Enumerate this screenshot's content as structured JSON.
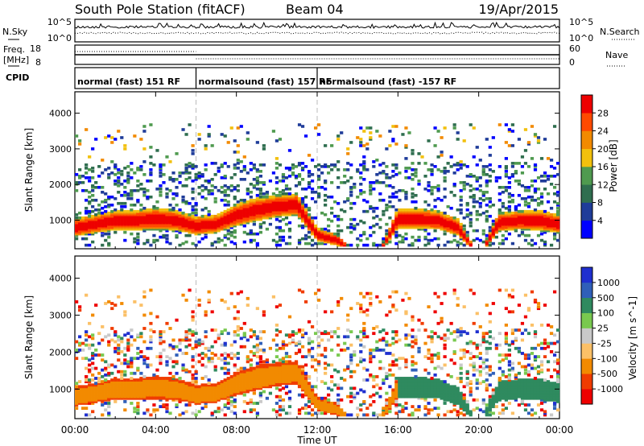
{
  "header": {
    "station": "South Pole Station (fitACF)",
    "beam": "Beam 04",
    "date": "19/Apr/2015"
  },
  "summary_panels": {
    "nsky": {
      "label": "N.Sky",
      "ticks_left": [
        "10^5",
        "10^0"
      ]
    },
    "nsearch": {
      "label": "N.Search",
      "ticks_right": [
        "10^5",
        "10^0"
      ]
    },
    "freq": {
      "label_line1": "Freq.",
      "label_line2": "[MHz]",
      "ticks": [
        "18",
        "8"
      ]
    },
    "nave": {
      "label": "Nave",
      "ticks": [
        "60",
        "0"
      ]
    },
    "cpid": {
      "label": "CPID",
      "segments": [
        {
          "label": "normal (fast) 151 RF",
          "start_h": 0,
          "end_h": 6
        },
        {
          "label": "normalsound (fast) 157 RF",
          "start_h": 6,
          "end_h": 12
        },
        {
          "label": "normalsound (fast) -157 RF",
          "start_h": 12,
          "end_h": 24
        }
      ]
    }
  },
  "colors": {
    "power": [
      "#0000ff",
      "#1f3c99",
      "#2f6e4f",
      "#4f9a4f",
      "#f2c00d",
      "#f28a00",
      "#ff4a00",
      "#ee0000"
    ],
    "velocity": [
      "#ee0000",
      "#f03c00",
      "#f28a00",
      "#fbc067",
      "#c9c9c9",
      "#79c94f",
      "#2f8a5f",
      "#2f5fb9",
      "#1f2fcf"
    ]
  },
  "chart_data": [
    {
      "type": "heatmap",
      "name": "power",
      "ylabel": "Slant Range [km]",
      "ylim": [
        200,
        4600
      ],
      "yticks": [
        "1000",
        "2000",
        "3000",
        "4000"
      ],
      "xlim": [
        0,
        24
      ],
      "colorbar": {
        "label": "Power [dB]",
        "ticks": [
          "4",
          "8",
          "12",
          "16",
          "20",
          "24",
          "28"
        ],
        "range": [
          0,
          32
        ]
      },
      "band_profile": {
        "hours": [
          0,
          1,
          2,
          3,
          4,
          5,
          6,
          7,
          8,
          9,
          10,
          11,
          12,
          13,
          14,
          15,
          16,
          17,
          18,
          19,
          20,
          21,
          22,
          23,
          24
        ],
        "center_km": [
          800,
          900,
          1000,
          1000,
          1050,
          1000,
          850,
          900,
          1150,
          1300,
          1400,
          1450,
          600,
          450,
          0,
          0,
          1050,
          1050,
          1000,
          800,
          0,
          950,
          1000,
          1000,
          900
        ],
        "width_km": [
          500,
          500,
          550,
          550,
          600,
          550,
          500,
          500,
          600,
          650,
          600,
          600,
          350,
          300,
          0,
          0,
          550,
          550,
          500,
          450,
          0,
          500,
          500,
          550,
          500
        ]
      }
    },
    {
      "type": "heatmap",
      "name": "velocity",
      "ylabel": "Slant Range [km]",
      "xlabel": "Time UT",
      "ylim": [
        200,
        4600
      ],
      "yticks": [
        "1000",
        "2000",
        "3000",
        "4000"
      ],
      "xlim": [
        0,
        24
      ],
      "xticks": [
        "00:00",
        "04:00",
        "08:00",
        "12:00",
        "16:00",
        "20:00",
        "00:00"
      ],
      "colorbar": {
        "label": "Velocity [m s^-1]",
        "ticks": [
          "-1000",
          "-500",
          "-100",
          "-25",
          "25",
          "100",
          "500",
          "1000"
        ],
        "range": [
          -1200,
          1200
        ]
      }
    }
  ]
}
